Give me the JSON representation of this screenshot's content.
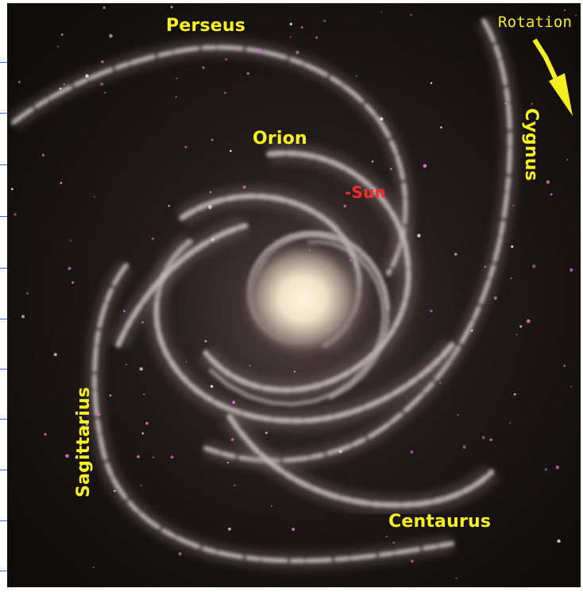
{
  "labels": {
    "perseus": "Perseus",
    "orion": "Orion",
    "sun": "-Sun",
    "rotation": "Rotation",
    "cygnus": "Cygnus",
    "sagittarius": "Sagittarius",
    "centaurus": "Centaurus"
  },
  "colors": {
    "label": "#f6f223",
    "sun_label": "#ff2b2b",
    "background": "#120e0d",
    "arm": "#c9bfc2",
    "core": "#f4ecd6",
    "star": "#d46fc8"
  },
  "icons": {
    "rotation_arrow": "arrow-down-right-icon"
  }
}
